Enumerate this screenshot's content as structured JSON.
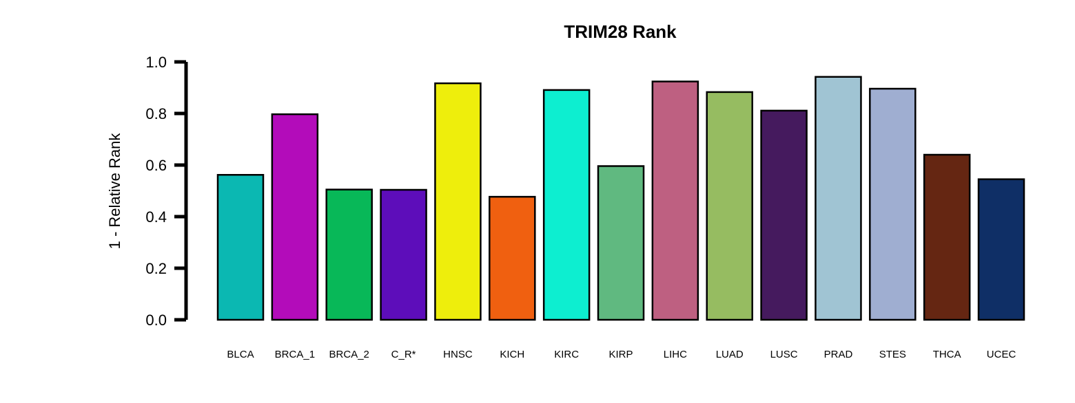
{
  "chart_data": {
    "type": "bar",
    "title": "TRIM28 Rank",
    "xlabel": "",
    "ylabel": "1 - Relative Rank",
    "ylim": [
      0,
      1.0
    ],
    "yticks": [
      "0.0",
      "0.2",
      "0.4",
      "0.6",
      "0.8",
      "1.0"
    ],
    "grid": false,
    "legend": "none",
    "categories": [
      "BLCA",
      "BRCA_1",
      "BRCA_2",
      "C_R*",
      "HNSC",
      "KICH",
      "KIRC",
      "KIRP",
      "LIHC",
      "LUAD",
      "LUSC",
      "PRAD",
      "STES",
      "THCA",
      "UCEC"
    ],
    "values": [
      0.562,
      0.797,
      0.505,
      0.504,
      0.917,
      0.477,
      0.891,
      0.596,
      0.924,
      0.883,
      0.811,
      0.942,
      0.896,
      0.64,
      0.545
    ],
    "colors": [
      "#0BB8B2",
      "#B30CBA",
      "#08B858",
      "#5D0DBA",
      "#EEEE0C",
      "#F06010",
      "#0DEED0",
      "#60B980",
      "#BE6081",
      "#96BC61",
      "#451A5E",
      "#A0C4D3",
      "#9FAED1",
      "#652612",
      "#0F2F66"
    ]
  }
}
